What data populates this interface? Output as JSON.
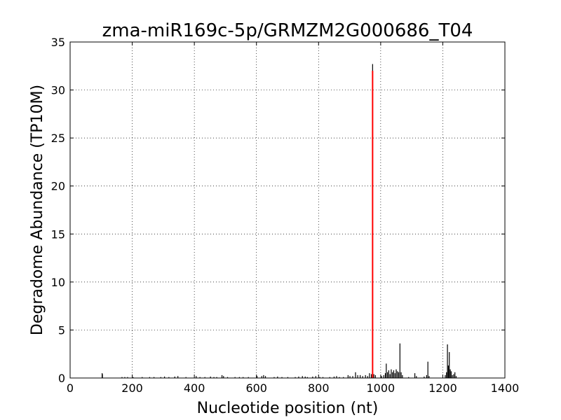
{
  "chart_data": {
    "type": "bar",
    "title": "zma-miR169c-5p/GRMZM2G000686_T04",
    "xlabel": "Nucleotide position (nt)",
    "ylabel": "Degradome Abundance (TP10M)",
    "xlim": [
      0,
      1400
    ],
    "ylim": [
      0,
      35
    ],
    "xticks": [
      0,
      200,
      400,
      600,
      800,
      1000,
      1200,
      1400
    ],
    "yticks": [
      0,
      5,
      10,
      15,
      20,
      25,
      30,
      35
    ],
    "grid": true,
    "colors": {
      "bars": "#000000",
      "highlight": "#ff0000"
    },
    "highlight": {
      "x": 974,
      "y": 32
    },
    "bars": [
      {
        "x": 103,
        "y": 0.5
      },
      {
        "x": 104,
        "y": 0.4
      },
      {
        "x": 167,
        "y": 0.1
      },
      {
        "x": 176,
        "y": 0.1
      },
      {
        "x": 185,
        "y": 0.1
      },
      {
        "x": 203,
        "y": 0.1
      },
      {
        "x": 232,
        "y": 0.1
      },
      {
        "x": 256,
        "y": 0.1
      },
      {
        "x": 270,
        "y": 0.1
      },
      {
        "x": 292,
        "y": 0.1
      },
      {
        "x": 304,
        "y": 0.15
      },
      {
        "x": 318,
        "y": 0.1
      },
      {
        "x": 337,
        "y": 0.15
      },
      {
        "x": 347,
        "y": 0.2
      },
      {
        "x": 373,
        "y": 0.1
      },
      {
        "x": 406,
        "y": 0.2
      },
      {
        "x": 418,
        "y": 0.1
      },
      {
        "x": 434,
        "y": 0.1
      },
      {
        "x": 452,
        "y": 0.15
      },
      {
        "x": 463,
        "y": 0.1
      },
      {
        "x": 472,
        "y": 0.1
      },
      {
        "x": 489,
        "y": 0.3
      },
      {
        "x": 494,
        "y": 0.2
      },
      {
        "x": 507,
        "y": 0.1
      },
      {
        "x": 531,
        "y": 0.1
      },
      {
        "x": 545,
        "y": 0.1
      },
      {
        "x": 557,
        "y": 0.1
      },
      {
        "x": 574,
        "y": 0.1
      },
      {
        "x": 602,
        "y": 0.2
      },
      {
        "x": 617,
        "y": 0.2
      },
      {
        "x": 623,
        "y": 0.3
      },
      {
        "x": 629,
        "y": 0.2
      },
      {
        "x": 657,
        "y": 0.1
      },
      {
        "x": 668,
        "y": 0.15
      },
      {
        "x": 682,
        "y": 0.1
      },
      {
        "x": 701,
        "y": 0.1
      },
      {
        "x": 725,
        "y": 0.1
      },
      {
        "x": 736,
        "y": 0.15
      },
      {
        "x": 748,
        "y": 0.2
      },
      {
        "x": 757,
        "y": 0.15
      },
      {
        "x": 764,
        "y": 0.1
      },
      {
        "x": 781,
        "y": 0.15
      },
      {
        "x": 791,
        "y": 0.2
      },
      {
        "x": 804,
        "y": 0.1
      },
      {
        "x": 814,
        "y": 0.1
      },
      {
        "x": 836,
        "y": 0.1
      },
      {
        "x": 850,
        "y": 0.15
      },
      {
        "x": 858,
        "y": 0.2
      },
      {
        "x": 867,
        "y": 0.1
      },
      {
        "x": 880,
        "y": 0.1
      },
      {
        "x": 895,
        "y": 0.3
      },
      {
        "x": 901,
        "y": 0.2
      },
      {
        "x": 910,
        "y": 0.2
      },
      {
        "x": 919,
        "y": 0.6
      },
      {
        "x": 926,
        "y": 0.3
      },
      {
        "x": 934,
        "y": 0.3
      },
      {
        "x": 942,
        "y": 0.2
      },
      {
        "x": 951,
        "y": 0.3
      },
      {
        "x": 958,
        "y": 0.2
      },
      {
        "x": 964,
        "y": 0.5
      },
      {
        "x": 970,
        "y": 0.4
      },
      {
        "x": 974,
        "y": 32.7
      },
      {
        "x": 978,
        "y": 0.4
      },
      {
        "x": 983,
        "y": 0.3
      },
      {
        "x": 1003,
        "y": 0.2
      },
      {
        "x": 1010,
        "y": 0.3
      },
      {
        "x": 1015,
        "y": 0.5
      },
      {
        "x": 1018,
        "y": 1.5
      },
      {
        "x": 1022,
        "y": 0.6
      },
      {
        "x": 1026,
        "y": 0.8
      },
      {
        "x": 1030,
        "y": 0.4
      },
      {
        "x": 1034,
        "y": 0.9
      },
      {
        "x": 1038,
        "y": 0.6
      },
      {
        "x": 1042,
        "y": 0.8
      },
      {
        "x": 1046,
        "y": 0.5
      },
      {
        "x": 1050,
        "y": 0.9
      },
      {
        "x": 1054,
        "y": 0.7
      },
      {
        "x": 1058,
        "y": 0.6
      },
      {
        "x": 1062,
        "y": 3.6
      },
      {
        "x": 1066,
        "y": 0.6
      },
      {
        "x": 1070,
        "y": 0.3
      },
      {
        "x": 1090,
        "y": 0.1
      },
      {
        "x": 1110,
        "y": 0.5
      },
      {
        "x": 1115,
        "y": 0.2
      },
      {
        "x": 1140,
        "y": 0.15
      },
      {
        "x": 1148,
        "y": 0.3
      },
      {
        "x": 1152,
        "y": 1.7
      },
      {
        "x": 1156,
        "y": 0.2
      },
      {
        "x": 1208,
        "y": 0.3
      },
      {
        "x": 1212,
        "y": 0.6
      },
      {
        "x": 1215,
        "y": 3.5
      },
      {
        "x": 1218,
        "y": 1.3
      },
      {
        "x": 1221,
        "y": 2.7
      },
      {
        "x": 1224,
        "y": 0.9
      },
      {
        "x": 1227,
        "y": 0.7
      },
      {
        "x": 1231,
        "y": 0.3
      },
      {
        "x": 1235,
        "y": 0.4
      },
      {
        "x": 1239,
        "y": 0.6
      },
      {
        "x": 1243,
        "y": 0.2
      }
    ]
  }
}
